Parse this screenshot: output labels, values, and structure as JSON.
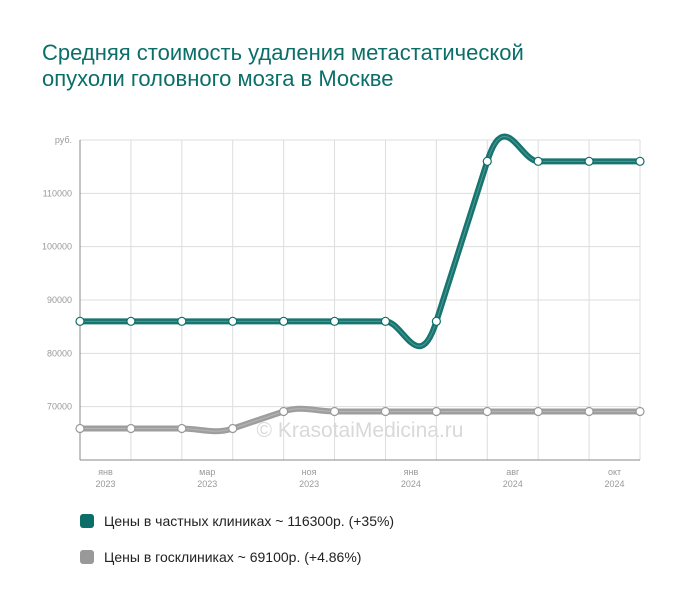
{
  "chart_data": {
    "type": "line",
    "title": "Средняя стоимость удаления метастатической опухоли головного мозга в Москве",
    "y_unit": "руб.",
    "ylim": [
      60000,
      120000
    ],
    "y_ticks": [
      70000,
      80000,
      90000,
      100000,
      110000
    ],
    "y_tick_labels": [
      "70000",
      "80000",
      "90000",
      "100000",
      "110000"
    ],
    "x_tick_labels": [
      {
        "month": "янв",
        "year": "2023"
      },
      {
        "month": "мар",
        "year": "2023"
      },
      {
        "month": "ноя",
        "year": "2023"
      },
      {
        "month": "янв",
        "year": "2024"
      },
      {
        "month": "авг",
        "year": "2024"
      },
      {
        "month": "окт",
        "year": "2024"
      }
    ],
    "point_count": 12,
    "x_label_positions": [
      1,
      3,
      5,
      7,
      9,
      11
    ],
    "grid": true,
    "series": [
      {
        "name": "Цены в частных клиниках ~ 116300р. (+35%)",
        "color": "#0b6e68",
        "values": [
          86000,
          86000,
          86000,
          86000,
          86000,
          86000,
          86000,
          86000,
          116000,
          116000,
          116000,
          116000
        ]
      },
      {
        "name": "Цены в госклиниках ~ 69100р. (+4.86%)",
        "color": "#999999",
        "values": [
          65900,
          65900,
          65900,
          65900,
          69100,
          69100,
          69100,
          69100,
          69100,
          69100,
          69100,
          69100
        ]
      }
    ],
    "watermark": "© KrasotaiMedicina.ru",
    "legend_position": "bottom"
  }
}
